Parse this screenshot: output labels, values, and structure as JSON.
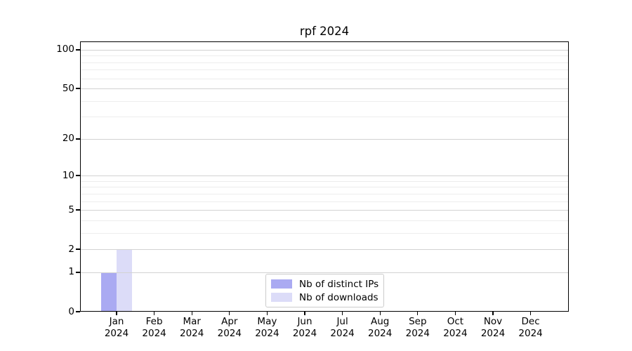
{
  "chart_data": {
    "type": "bar",
    "title": "rpf 2024",
    "yscale": "log1p",
    "ylim": [
      0,
      116
    ],
    "grid": "major and minor horizontal gridlines",
    "legend_position": "lower center",
    "categories": [
      "Jan 2024",
      "Feb 2024",
      "Mar 2024",
      "Apr 2024",
      "May 2024",
      "Jun 2024",
      "Jul 2024",
      "Aug 2024",
      "Sep 2024",
      "Oct 2024",
      "Nov 2024",
      "Dec 2024"
    ],
    "series": [
      {
        "name": "Nb of distinct IPs",
        "color": "#aaaaf2",
        "values": [
          1,
          0,
          0,
          0,
          0,
          0,
          0,
          0,
          0,
          0,
          0,
          0
        ]
      },
      {
        "name": "Nb of downloads",
        "color": "#dcdcf8",
        "values": [
          2,
          0,
          0,
          0,
          0,
          0,
          0,
          0,
          0,
          0,
          0,
          0
        ]
      }
    ],
    "y_major_ticks": [
      0,
      1,
      2,
      5,
      10,
      20,
      50,
      100
    ],
    "y_minor_gridlines": [
      3,
      4,
      6,
      7,
      8,
      9,
      30,
      40,
      60,
      70,
      80,
      90
    ]
  },
  "colors": {
    "background": "#ffffff",
    "text": "#000000",
    "spine": "#000000",
    "grid_major": "#d2d2d2",
    "grid_minor": "#ededed",
    "legend_border": "#cccccc",
    "legend_background": "#ffffff"
  }
}
